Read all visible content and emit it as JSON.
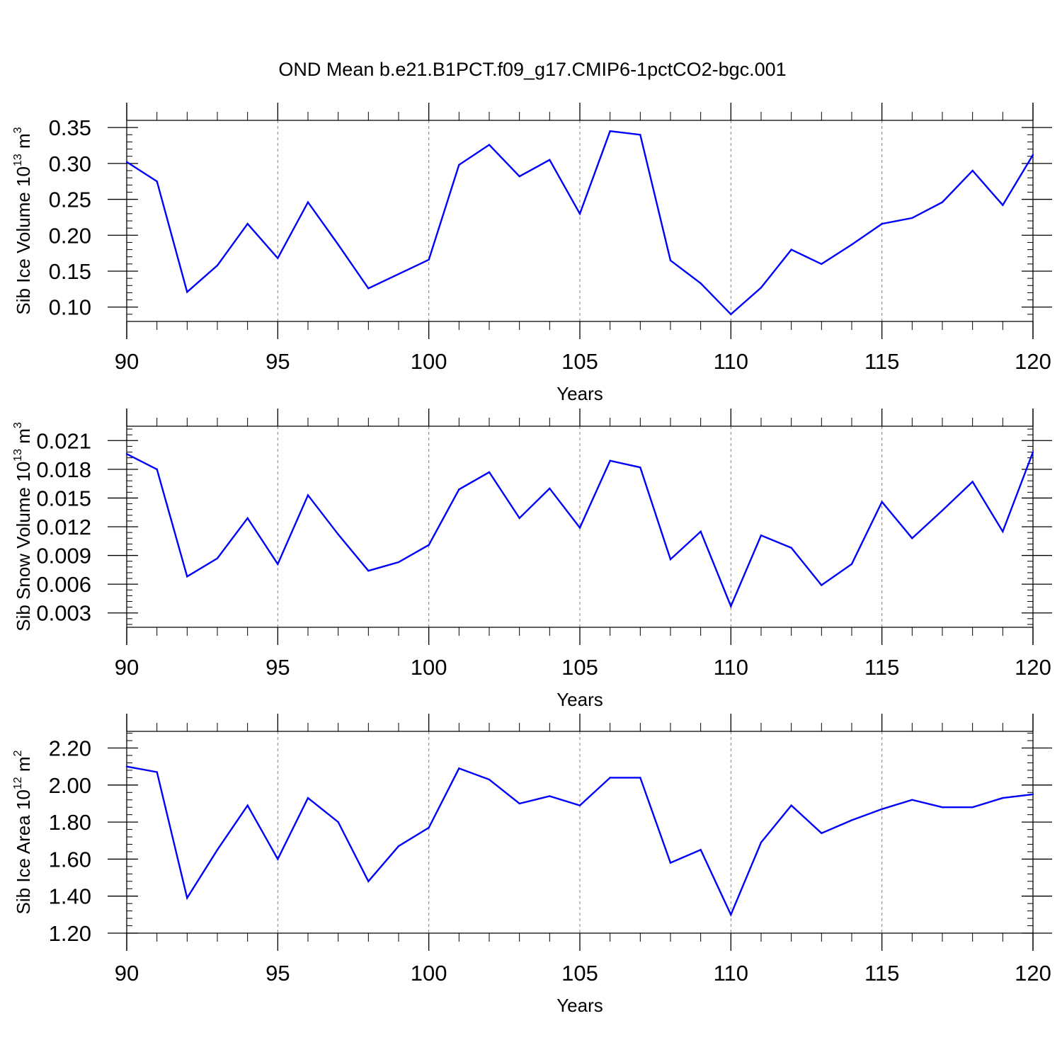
{
  "figure": {
    "title": "OND Mean b.e21.B1PCT.f09_g17.CMIP6-1pctCO2-bgc.001"
  },
  "style": {
    "line_color": "#0000ff",
    "axis_color": "#000000",
    "grid_color": "#808080"
  },
  "chart_data": [
    {
      "type": "line",
      "ylabel": {
        "prefix": "Sib Ice Volume 10",
        "sup": "13",
        "unit": " m",
        "unit_sup": "3"
      },
      "xlabel": "Years",
      "xlim": [
        90,
        120
      ],
      "ylim": [
        0.08,
        0.36
      ],
      "xticks": [
        90,
        95,
        100,
        105,
        110,
        115,
        120
      ],
      "xtick_labels": [
        "90",
        "95",
        "100",
        "105",
        "110",
        "115",
        "120"
      ],
      "yticks": [
        0.1,
        0.15,
        0.2,
        0.25,
        0.3,
        0.35
      ],
      "ytick_labels": [
        "0.10",
        "0.15",
        "0.20",
        "0.25",
        "0.30",
        "0.35"
      ],
      "y_minor_step": 0.01,
      "grid_x": [
        95,
        100,
        105,
        110,
        115
      ],
      "x": [
        90,
        91,
        92,
        93,
        94,
        95,
        96,
        97,
        98,
        99,
        100,
        101,
        102,
        103,
        104,
        105,
        106,
        107,
        108,
        109,
        110,
        111,
        112,
        113,
        114,
        115,
        116,
        117,
        118,
        119,
        120
      ],
      "series": [
        {
          "name": "Sib Ice Volume",
          "values": [
            0.302,
            0.275,
            0.121,
            0.158,
            0.216,
            0.168,
            0.246,
            0.187,
            0.126,
            0.146,
            0.166,
            0.298,
            0.326,
            0.282,
            0.305,
            0.23,
            0.345,
            0.34,
            0.165,
            0.133,
            0.09,
            0.127,
            0.18,
            0.16,
            0.187,
            0.216,
            0.224,
            0.246,
            0.29,
            0.242,
            0.312
          ]
        }
      ]
    },
    {
      "type": "line",
      "ylabel": {
        "prefix": "Sib Snow Volume 10",
        "sup": "13",
        "unit": " m",
        "unit_sup": "3"
      },
      "xlabel": "Years",
      "xlim": [
        90,
        120
      ],
      "ylim": [
        0.0015,
        0.0225
      ],
      "xticks": [
        90,
        95,
        100,
        105,
        110,
        115,
        120
      ],
      "xtick_labels": [
        "90",
        "95",
        "100",
        "105",
        "110",
        "115",
        "120"
      ],
      "yticks": [
        0.003,
        0.006,
        0.009,
        0.012,
        0.015,
        0.018,
        0.021
      ],
      "ytick_labels": [
        "0.003",
        "0.006",
        "0.009",
        "0.012",
        "0.015",
        "0.018",
        "0.021"
      ],
      "y_minor_step": 0.0006,
      "grid_x": [
        95,
        100,
        105,
        110,
        115
      ],
      "x": [
        90,
        91,
        92,
        93,
        94,
        95,
        96,
        97,
        98,
        99,
        100,
        101,
        102,
        103,
        104,
        105,
        106,
        107,
        108,
        109,
        110,
        111,
        112,
        113,
        114,
        115,
        116,
        117,
        118,
        119,
        120
      ],
      "series": [
        {
          "name": "Sib Snow Volume",
          "values": [
            0.0196,
            0.018,
            0.0068,
            0.0087,
            0.0129,
            0.0081,
            0.0153,
            0.0112,
            0.0074,
            0.0083,
            0.0101,
            0.0159,
            0.0177,
            0.0129,
            0.016,
            0.0119,
            0.0189,
            0.0182,
            0.0086,
            0.0115,
            0.0037,
            0.0111,
            0.0098,
            0.0059,
            0.0081,
            0.0146,
            0.0108,
            0.0137,
            0.0167,
            0.0115,
            0.0198
          ]
        }
      ]
    },
    {
      "type": "line",
      "ylabel": {
        "prefix": "Sib Ice Area 10",
        "sup": "12",
        "unit": " m",
        "unit_sup": "2"
      },
      "xlabel": "Years",
      "xlim": [
        90,
        120
      ],
      "ylim": [
        1.2,
        2.29
      ],
      "xticks": [
        90,
        95,
        100,
        105,
        110,
        115,
        120
      ],
      "xtick_labels": [
        "90",
        "95",
        "100",
        "105",
        "110",
        "115",
        "120"
      ],
      "yticks": [
        1.2,
        1.4,
        1.6,
        1.8,
        2.0,
        2.2
      ],
      "ytick_labels": [
        "1.20",
        "1.40",
        "1.60",
        "1.80",
        "2.00",
        "2.20"
      ],
      "y_minor_step": 0.04,
      "grid_x": [
        95,
        100,
        105,
        110,
        115
      ],
      "x": [
        90,
        91,
        92,
        93,
        94,
        95,
        96,
        97,
        98,
        99,
        100,
        101,
        102,
        103,
        104,
        105,
        106,
        107,
        108,
        109,
        110,
        111,
        112,
        113,
        114,
        115,
        116,
        117,
        118,
        119,
        120
      ],
      "series": [
        {
          "name": "Sib Ice Area",
          "values": [
            2.1,
            2.07,
            1.39,
            1.65,
            1.89,
            1.6,
            1.93,
            1.8,
            1.48,
            1.67,
            1.77,
            2.09,
            2.03,
            1.9,
            1.94,
            1.89,
            2.04,
            2.04,
            1.58,
            1.65,
            1.3,
            1.69,
            1.89,
            1.74,
            1.81,
            1.87,
            1.92,
            1.88,
            1.88,
            1.93,
            1.95
          ]
        }
      ]
    }
  ]
}
